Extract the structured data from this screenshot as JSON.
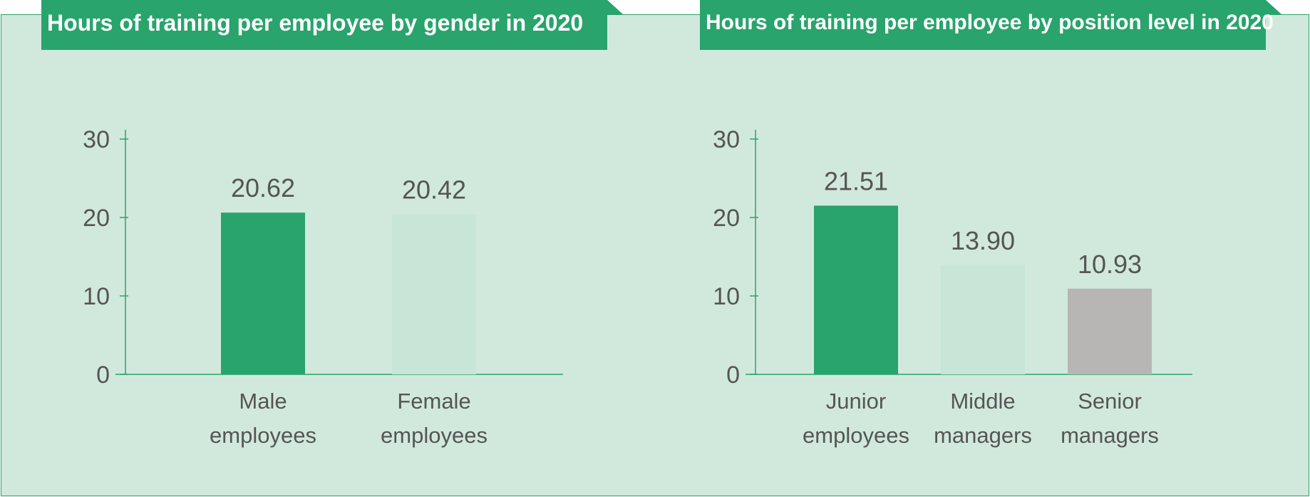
{
  "colors": {
    "panel_bg": "#d1e9dc",
    "accent": "#28a46c",
    "bar_dark_green": "#28a46c",
    "bar_light_green": "#c7e6d7",
    "bar_gray": "#b7b6b4",
    "text": "#555555"
  },
  "chart_data": [
    {
      "type": "bar",
      "title": "Hours of training per employee by gender in 2020",
      "categories": [
        [
          "Male",
          "employees"
        ],
        [
          "Female",
          "employees"
        ]
      ],
      "values": [
        20.62,
        20.42
      ],
      "value_labels": [
        "20.62",
        "20.42"
      ],
      "bar_colors": [
        "#28a46c",
        "#c7e6d7"
      ],
      "ylim": [
        0,
        30
      ],
      "yticks": [
        0,
        10,
        20,
        30
      ],
      "grid": false,
      "legend": "none"
    },
    {
      "type": "bar",
      "title": "Hours of training per employee by position level in 2020",
      "categories": [
        [
          "Junior",
          "employees"
        ],
        [
          "Middle",
          "managers"
        ],
        [
          "Senior",
          "managers"
        ]
      ],
      "values": [
        21.51,
        13.9,
        10.93
      ],
      "value_labels": [
        "21.51",
        "13.90",
        "10.93"
      ],
      "bar_colors": [
        "#28a46c",
        "#c7e6d7",
        "#b7b6b4"
      ],
      "ylim": [
        0,
        30
      ],
      "yticks": [
        0,
        10,
        20,
        30
      ],
      "grid": false,
      "legend": "none"
    }
  ]
}
